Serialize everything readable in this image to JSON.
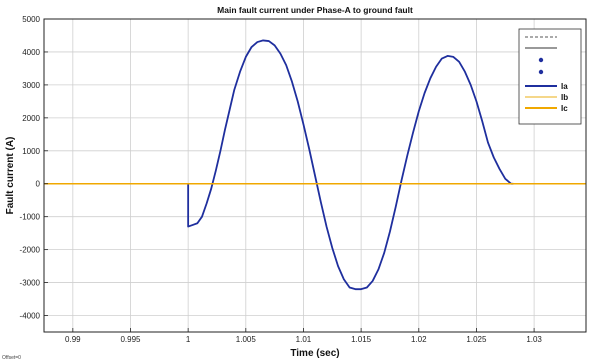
{
  "chart_data": {
    "type": "line",
    "title": "Main fault current under Phase-A to ground fault",
    "xlabel": "Time (sec)",
    "ylabel": "Fault current (A)",
    "xlim": [
      0.9875,
      1.0345
    ],
    "ylim": [
      -4500,
      5000
    ],
    "x_ticks": [
      0.99,
      0.995,
      1,
      1.005,
      1.01,
      1.015,
      1.02,
      1.025,
      1.03
    ],
    "x_tick_labels": [
      "0.99",
      "0.995",
      "1",
      "1.005",
      "1.01",
      "1.015",
      "1.02",
      "1.025",
      "1.03"
    ],
    "y_ticks": [
      -4000,
      -3000,
      -2000,
      -1000,
      0,
      1000,
      2000,
      3000,
      4000,
      5000
    ],
    "y_tick_labels": [
      "-4000",
      "-3000",
      "-2000",
      "-1000",
      "0",
      "1000",
      "2000",
      "3000",
      "4000",
      "5000"
    ],
    "grid": true,
    "legend_position": "top-right",
    "offset_note": "Offset=0",
    "series": [
      {
        "name": "Ia",
        "color": "#1f2f9e",
        "x": [
          1.0,
          1.0,
          1.0004,
          1.0008,
          1.0012,
          1.0016,
          1.002,
          1.0024,
          1.0028,
          1.0032,
          1.0036,
          1.004,
          1.0045,
          1.005,
          1.0055,
          1.006,
          1.0065,
          1.007,
          1.0075,
          1.008,
          1.0085,
          1.009,
          1.0095,
          1.01,
          1.0105,
          1.011,
          1.0115,
          1.012,
          1.0125,
          1.013,
          1.0135,
          1.014,
          1.0145,
          1.015,
          1.0155,
          1.016,
          1.0165,
          1.017,
          1.0175,
          1.018,
          1.0185,
          1.019,
          1.0195,
          1.02,
          1.0205,
          1.021,
          1.0215,
          1.022,
          1.0225,
          1.023,
          1.0235,
          1.024,
          1.0245,
          1.025,
          1.0255,
          1.026,
          1.0265,
          1.027,
          1.0275,
          1.028,
          1.0282
        ],
        "y": [
          0,
          -1300,
          -1250,
          -1200,
          -1000,
          -600,
          -150,
          400,
          1000,
          1650,
          2250,
          2850,
          3400,
          3850,
          4150,
          4300,
          4350,
          4330,
          4200,
          3950,
          3600,
          3100,
          2500,
          1800,
          1050,
          250,
          -550,
          -1300,
          -1950,
          -2500,
          -2900,
          -3150,
          -3200,
          -3200,
          -3150,
          -2950,
          -2600,
          -2100,
          -1450,
          -700,
          100,
          850,
          1550,
          2200,
          2750,
          3200,
          3550,
          3800,
          3880,
          3850,
          3700,
          3400,
          3000,
          2500,
          1900,
          1250,
          800,
          450,
          150,
          0,
          0
        ]
      },
      {
        "name": "Ib",
        "color": "#f5d78a",
        "x": [
          0.9875,
          1.0345
        ],
        "y": [
          0,
          0
        ]
      },
      {
        "name": "Ic",
        "color": "#f0a800",
        "x": [
          0.9875,
          1.0345
        ],
        "y": [
          0,
          0
        ]
      }
    ],
    "legend_extra_entries": [
      {
        "style": "dashed",
        "color": "#555555"
      },
      {
        "style": "solid",
        "color": "#333333"
      },
      {
        "style": "dot",
        "color": "#1f2f9e"
      },
      {
        "style": "dot",
        "color": "#1f2f9e"
      }
    ]
  }
}
